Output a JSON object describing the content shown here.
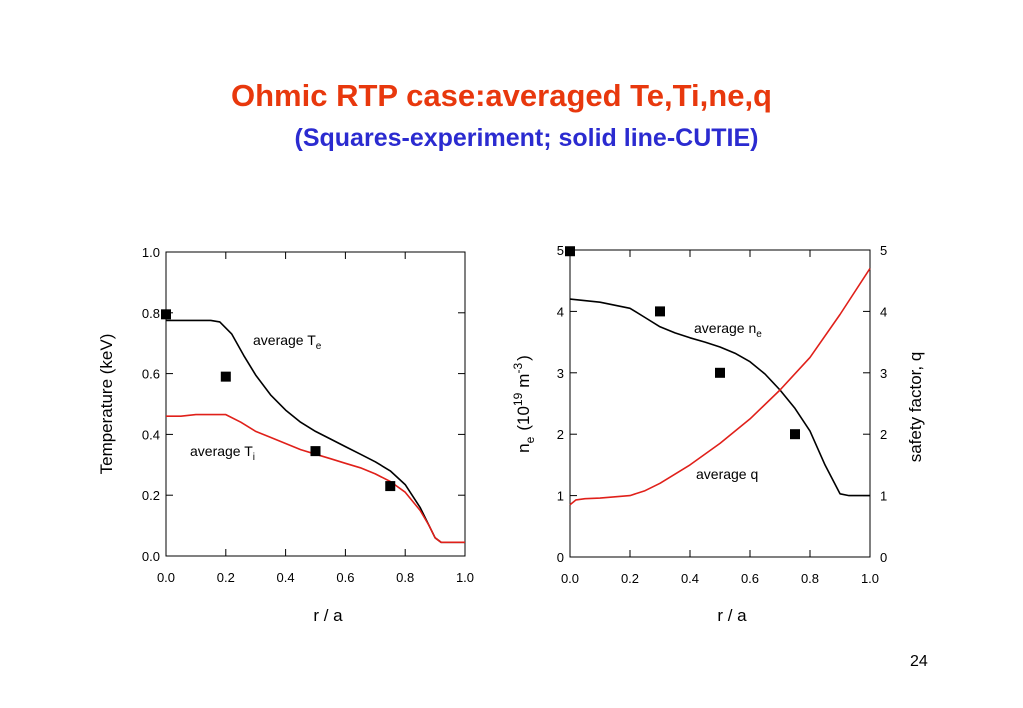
{
  "slide": {
    "title": "Ohmic RTP case:averaged Te,Ti,ne,q",
    "subtitle": "(Squares-experiment; solid line-CUTIE)",
    "page_number": "24"
  },
  "colors": {
    "title": "#e8380d",
    "subtitle": "#2b2bd0",
    "series_black": "#000000",
    "series_red": "#e0201a"
  },
  "chart_data": [
    {
      "type": "line",
      "xlabel": "r / a",
      "ylabel": "Temperature (keV)",
      "xlim": [
        0,
        1.0
      ],
      "ylim": [
        0,
        1.0
      ],
      "x_ticks": [
        "0.0",
        "0.2",
        "0.4",
        "0.6",
        "0.8",
        "1.0"
      ],
      "y_ticks": [
        "0.0",
        "0.2",
        "0.4",
        "0.6",
        "0.8",
        "1.0"
      ],
      "grid": false,
      "series": [
        {
          "name": "average Te",
          "label_main": "average T",
          "label_sub": "e",
          "color": "#000000",
          "x": [
            0,
            0.05,
            0.1,
            0.15,
            0.18,
            0.22,
            0.26,
            0.3,
            0.35,
            0.4,
            0.45,
            0.5,
            0.55,
            0.6,
            0.65,
            0.7,
            0.75,
            0.8,
            0.85,
            0.88,
            0.9,
            0.92,
            0.95,
            1.0
          ],
          "y": [
            0.775,
            0.775,
            0.775,
            0.775,
            0.77,
            0.73,
            0.66,
            0.595,
            0.53,
            0.48,
            0.44,
            0.41,
            0.385,
            0.36,
            0.335,
            0.31,
            0.28,
            0.235,
            0.16,
            0.1,
            0.06,
            0.045,
            0.045,
            0.045
          ]
        },
        {
          "name": "average Ti",
          "label_main": "average T",
          "label_sub": "i",
          "color": "#e0201a",
          "x": [
            0,
            0.05,
            0.1,
            0.15,
            0.2,
            0.25,
            0.3,
            0.35,
            0.4,
            0.45,
            0.5,
            0.55,
            0.6,
            0.65,
            0.7,
            0.75,
            0.8,
            0.85,
            0.88,
            0.9,
            0.92,
            0.95,
            1.0
          ],
          "y": [
            0.46,
            0.46,
            0.465,
            0.465,
            0.465,
            0.44,
            0.41,
            0.39,
            0.37,
            0.35,
            0.335,
            0.32,
            0.305,
            0.29,
            0.27,
            0.245,
            0.21,
            0.15,
            0.1,
            0.06,
            0.045,
            0.045,
            0.045
          ]
        }
      ],
      "experiment": {
        "x": [
          0.0,
          0.2,
          0.5,
          0.75
        ],
        "y": [
          0.795,
          0.59,
          0.345,
          0.23
        ]
      }
    },
    {
      "type": "line",
      "xlabel": "r / a",
      "ylabel_main": "n",
      "ylabel_sub": "e",
      "ylabel_rest": "(10",
      "ylabel_sup": "19",
      "ylabel_unit": "m",
      "ylabel_unit_sup": "-3",
      "ylabel_close": ")",
      "ylabel_right": "safety factor, q",
      "xlim": [
        0,
        1.0
      ],
      "ylim": [
        0,
        5
      ],
      "ylim_right": [
        0,
        5
      ],
      "x_ticks": [
        "0.0",
        "0.2",
        "0.4",
        "0.6",
        "0.8",
        "1.0"
      ],
      "y_ticks": [
        "0",
        "1",
        "2",
        "3",
        "4",
        "5"
      ],
      "y_ticks_right": [
        "0",
        "1",
        "2",
        "3",
        "4",
        "5"
      ],
      "grid": false,
      "series": [
        {
          "name": "average ne",
          "label_main": "average n",
          "label_sub": "e",
          "color": "#000000",
          "x": [
            0,
            0.1,
            0.2,
            0.25,
            0.3,
            0.35,
            0.4,
            0.45,
            0.5,
            0.55,
            0.6,
            0.65,
            0.7,
            0.75,
            0.8,
            0.85,
            0.9,
            0.93,
            1.0
          ],
          "y": [
            4.2,
            4.15,
            4.05,
            3.9,
            3.75,
            3.65,
            3.57,
            3.5,
            3.42,
            3.32,
            3.18,
            2.98,
            2.72,
            2.42,
            2.05,
            1.5,
            1.03,
            1.0,
            1.0
          ]
        },
        {
          "name": "average q",
          "label_main": "average q",
          "color": "#e0201a",
          "x": [
            0,
            0.02,
            0.05,
            0.1,
            0.2,
            0.25,
            0.3,
            0.4,
            0.5,
            0.6,
            0.7,
            0.8,
            0.9,
            1.0
          ],
          "y": [
            0.85,
            0.93,
            0.95,
            0.96,
            1.0,
            1.08,
            1.2,
            1.5,
            1.85,
            2.25,
            2.72,
            3.25,
            3.95,
            4.7
          ]
        }
      ],
      "experiment": {
        "x": [
          0.0,
          0.3,
          0.5,
          0.75
        ],
        "y": [
          4.98,
          4.0,
          3.0,
          2.0
        ]
      }
    }
  ]
}
